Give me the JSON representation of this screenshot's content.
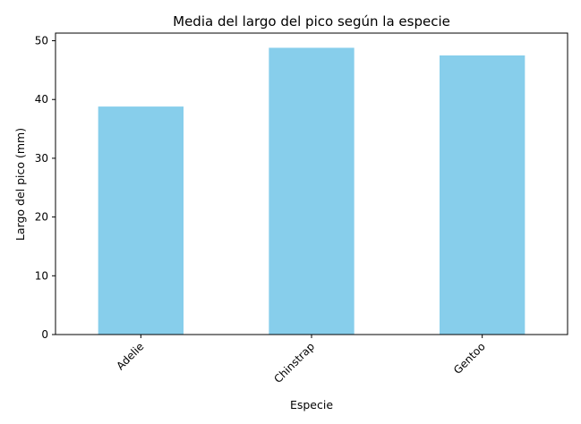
{
  "chart_data": {
    "type": "bar",
    "title": "Media del largo del pico según la especie",
    "xlabel": "Especie",
    "ylabel": "Largo del pico (mm)",
    "categories": [
      "Adelie",
      "Chinstrap",
      "Gentoo"
    ],
    "values": [
      38.8,
      48.8,
      47.5
    ],
    "ylim": [
      0,
      51.3
    ],
    "yticks": [
      0,
      10,
      20,
      30,
      40,
      50
    ],
    "bar_color": "#87ceeb",
    "grid": false,
    "legend": "none",
    "xtick_rotation": 45
  }
}
